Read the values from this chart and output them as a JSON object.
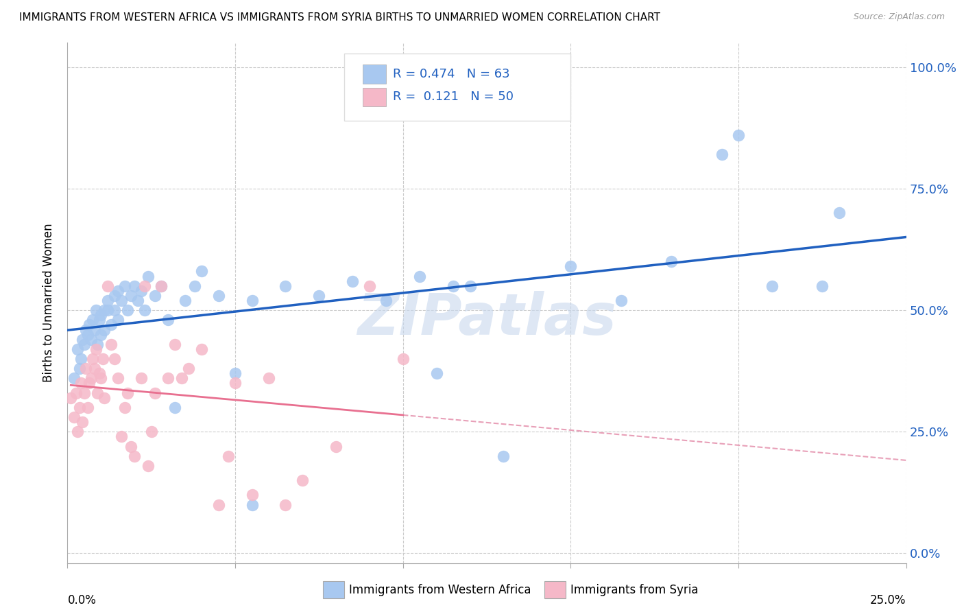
{
  "title": "IMMIGRANTS FROM WESTERN AFRICA VS IMMIGRANTS FROM SYRIA BIRTHS TO UNMARRIED WOMEN CORRELATION CHART",
  "source": "Source: ZipAtlas.com",
  "ylabel": "Births to Unmarried Women",
  "yticks": [
    "0.0%",
    "25.0%",
    "50.0%",
    "75.0%",
    "100.0%"
  ],
  "ytick_vals": [
    0.0,
    25.0,
    50.0,
    75.0,
    100.0
  ],
  "xtick_vals": [
    0.0,
    5.0,
    10.0,
    15.0,
    20.0,
    25.0
  ],
  "xlim": [
    0.0,
    25.0
  ],
  "ylim": [
    -2.0,
    105.0
  ],
  "r_blue": 0.474,
  "n_blue": 63,
  "r_pink": 0.121,
  "n_pink": 50,
  "legend_label_blue": "Immigrants from Western Africa",
  "legend_label_pink": "Immigrants from Syria",
  "blue_color": "#a8c8f0",
  "pink_color": "#f5b8c8",
  "blue_line_color": "#2060c0",
  "pink_line_color": "#e87090",
  "pink_dash_color": "#e8a0b8",
  "watermark": "ZIPatlas",
  "blue_scatter_x": [
    0.2,
    0.3,
    0.35,
    0.4,
    0.45,
    0.5,
    0.55,
    0.6,
    0.65,
    0.7,
    0.75,
    0.8,
    0.85,
    0.9,
    0.95,
    1.0,
    1.0,
    1.1,
    1.1,
    1.2,
    1.2,
    1.3,
    1.4,
    1.4,
    1.5,
    1.5,
    1.6,
    1.7,
    1.8,
    1.9,
    2.0,
    2.1,
    2.2,
    2.3,
    2.4,
    2.6,
    2.8,
    3.0,
    3.2,
    3.5,
    3.8,
    4.0,
    4.5,
    5.0,
    5.5,
    6.5,
    7.5,
    8.5,
    9.5,
    10.5,
    11.5,
    13.0,
    15.0,
    16.5,
    18.0,
    19.5,
    21.0,
    22.5,
    5.5,
    11.0,
    12.0,
    20.0,
    23.0
  ],
  "blue_scatter_y": [
    36.0,
    42.0,
    38.0,
    40.0,
    44.0,
    43.0,
    46.0,
    45.0,
    47.0,
    44.0,
    48.0,
    46.0,
    50.0,
    43.0,
    48.0,
    45.0,
    49.0,
    50.0,
    46.0,
    50.0,
    52.0,
    47.0,
    53.0,
    50.0,
    54.0,
    48.0,
    52.0,
    55.0,
    50.0,
    53.0,
    55.0,
    52.0,
    54.0,
    50.0,
    57.0,
    53.0,
    55.0,
    48.0,
    30.0,
    52.0,
    55.0,
    58.0,
    53.0,
    37.0,
    52.0,
    55.0,
    53.0,
    56.0,
    52.0,
    57.0,
    55.0,
    20.0,
    59.0,
    52.0,
    60.0,
    82.0,
    55.0,
    55.0,
    10.0,
    37.0,
    55.0,
    86.0,
    70.0
  ],
  "pink_scatter_x": [
    0.1,
    0.2,
    0.25,
    0.3,
    0.35,
    0.4,
    0.45,
    0.5,
    0.55,
    0.6,
    0.65,
    0.7,
    0.75,
    0.8,
    0.85,
    0.9,
    0.95,
    1.0,
    1.05,
    1.1,
    1.2,
    1.3,
    1.4,
    1.5,
    1.6,
    1.7,
    1.8,
    1.9,
    2.0,
    2.2,
    2.3,
    2.4,
    2.5,
    2.6,
    2.8,
    3.0,
    3.2,
    3.4,
    3.6,
    4.0,
    4.5,
    4.8,
    5.0,
    5.5,
    6.0,
    6.5,
    7.0,
    8.0,
    9.0,
    10.0
  ],
  "pink_scatter_y": [
    32.0,
    28.0,
    33.0,
    25.0,
    30.0,
    35.0,
    27.0,
    33.0,
    38.0,
    30.0,
    35.0,
    36.0,
    40.0,
    38.0,
    42.0,
    33.0,
    37.0,
    36.0,
    40.0,
    32.0,
    55.0,
    43.0,
    40.0,
    36.0,
    24.0,
    30.0,
    33.0,
    22.0,
    20.0,
    36.0,
    55.0,
    18.0,
    25.0,
    33.0,
    55.0,
    36.0,
    43.0,
    36.0,
    38.0,
    42.0,
    10.0,
    20.0,
    35.0,
    12.0,
    36.0,
    10.0,
    15.0,
    22.0,
    55.0,
    40.0
  ]
}
